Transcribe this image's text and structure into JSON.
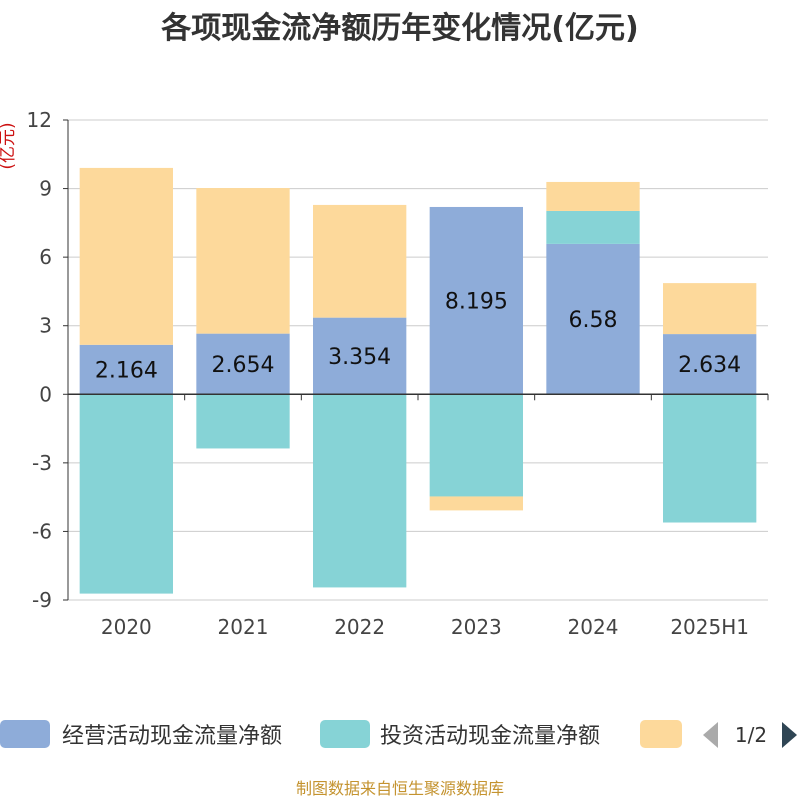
{
  "source_note": "制图数据来自恒生聚源数据库",
  "legend": {
    "page_indicator": "1/2",
    "prev_icon": "triangle-left-icon",
    "next_icon": "triangle-right-icon"
  },
  "chart_data": {
    "type": "bar",
    "stacked": true,
    "title": "各项现金流净额历年变化情况(亿元)",
    "xlabel": "",
    "ylabel": "(亿元)",
    "categories": [
      "2020",
      "2021",
      "2022",
      "2023",
      "2024",
      "2025H1"
    ],
    "ylim": [
      -9,
      12
    ],
    "yticks": [
      12,
      9,
      6,
      3,
      0,
      -3,
      -6,
      -9
    ],
    "grid": true,
    "legend_position": "bottom",
    "series": [
      {
        "name": "经营活动现金流量净额",
        "color": "#8eacd9",
        "values": [
          2.164,
          2.654,
          3.354,
          8.195,
          6.58,
          2.634
        ],
        "show_labels": true
      },
      {
        "name": "投资活动现金流量净额",
        "color": "#86d3d6",
        "values": [
          -8.72,
          -2.37,
          -8.45,
          -4.47,
          1.44,
          -5.61
        ]
      },
      {
        "color": "#fdd99b",
        "values": [
          7.74,
          6.37,
          4.93,
          -0.61,
          1.27,
          2.23
        ]
      }
    ]
  }
}
